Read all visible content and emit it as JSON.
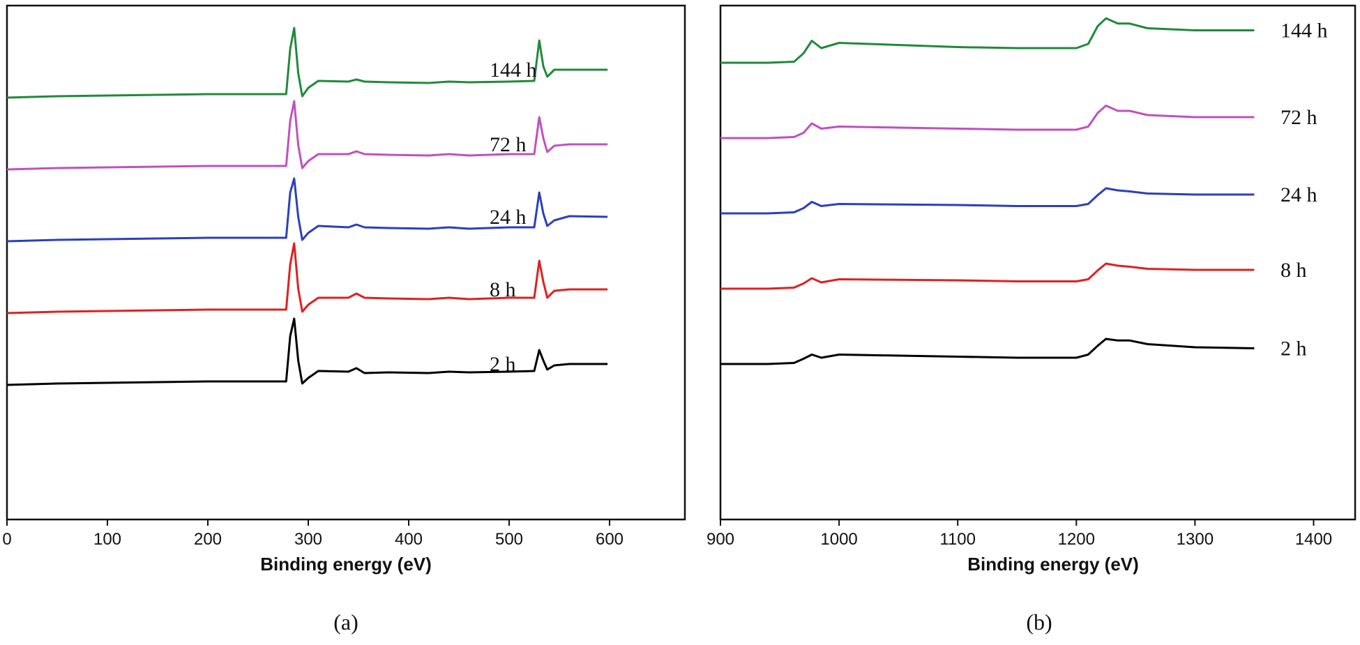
{
  "chart_data": [
    {
      "type": "line",
      "panel_label": "(a)",
      "xlabel": "Binding energy (eV)",
      "ylabel": "",
      "xlim": [
        0,
        675
      ],
      "xticks": [
        "0",
        "100",
        "200",
        "300",
        "400",
        "500",
        "600"
      ],
      "y_offset_step": 1,
      "series": [
        {
          "name": "2 h",
          "color": "#000000",
          "x": [
            0,
            50,
            100,
            150,
            200,
            250,
            278,
            282,
            286,
            290,
            294,
            300,
            310,
            340,
            348,
            356,
            380,
            420,
            440,
            460,
            500,
            525,
            530,
            534,
            538,
            545,
            560,
            598
          ],
          "values": [
            0.0,
            0.02,
            0.03,
            0.04,
            0.05,
            0.05,
            0.05,
            0.7,
            0.95,
            0.35,
            0.02,
            0.1,
            0.2,
            0.19,
            0.24,
            0.17,
            0.18,
            0.17,
            0.19,
            0.18,
            0.19,
            0.2,
            0.5,
            0.35,
            0.22,
            0.28,
            0.3,
            0.3
          ]
        },
        {
          "name": "8 h",
          "color": "#e02020",
          "x": [
            0,
            50,
            100,
            150,
            200,
            250,
            278,
            282,
            286,
            290,
            294,
            300,
            310,
            340,
            348,
            356,
            380,
            420,
            440,
            460,
            500,
            525,
            530,
            534,
            538,
            545,
            560,
            598
          ],
          "values": [
            0.0,
            0.02,
            0.03,
            0.04,
            0.05,
            0.05,
            0.05,
            0.7,
            1.0,
            0.35,
            0.02,
            0.12,
            0.22,
            0.22,
            0.28,
            0.22,
            0.21,
            0.2,
            0.22,
            0.2,
            0.22,
            0.22,
            0.75,
            0.45,
            0.22,
            0.32,
            0.34,
            0.34
          ]
        },
        {
          "name": "24 h",
          "color": "#2a3fbf",
          "x": [
            0,
            50,
            100,
            150,
            200,
            250,
            278,
            282,
            286,
            290,
            294,
            300,
            310,
            340,
            348,
            356,
            380,
            420,
            440,
            460,
            500,
            525,
            530,
            534,
            538,
            545,
            560,
            598
          ],
          "values": [
            0.0,
            0.02,
            0.03,
            0.04,
            0.05,
            0.05,
            0.05,
            0.7,
            0.9,
            0.35,
            0.02,
            0.12,
            0.22,
            0.2,
            0.24,
            0.2,
            0.19,
            0.18,
            0.2,
            0.18,
            0.2,
            0.2,
            0.7,
            0.4,
            0.22,
            0.3,
            0.36,
            0.35
          ]
        },
        {
          "name": "72 h",
          "color": "#c050c0",
          "x": [
            0,
            50,
            100,
            150,
            200,
            250,
            278,
            282,
            286,
            290,
            294,
            300,
            310,
            340,
            348,
            356,
            380,
            420,
            440,
            460,
            500,
            525,
            530,
            534,
            538,
            545,
            560,
            598
          ],
          "values": [
            0.0,
            0.02,
            0.03,
            0.04,
            0.05,
            0.05,
            0.05,
            0.7,
            0.98,
            0.35,
            0.02,
            0.12,
            0.22,
            0.22,
            0.26,
            0.22,
            0.21,
            0.2,
            0.22,
            0.2,
            0.22,
            0.22,
            0.75,
            0.45,
            0.25,
            0.34,
            0.36,
            0.36
          ]
        },
        {
          "name": "144 h",
          "color": "#1f8a3a",
          "x": [
            0,
            50,
            100,
            150,
            200,
            250,
            278,
            282,
            286,
            290,
            294,
            300,
            310,
            340,
            348,
            356,
            380,
            420,
            440,
            460,
            500,
            525,
            530,
            534,
            538,
            545,
            560,
            598
          ],
          "values": [
            0.0,
            0.02,
            0.03,
            0.04,
            0.05,
            0.05,
            0.05,
            0.7,
            1.0,
            0.35,
            0.02,
            0.14,
            0.24,
            0.23,
            0.26,
            0.23,
            0.22,
            0.21,
            0.23,
            0.22,
            0.23,
            0.24,
            0.82,
            0.45,
            0.3,
            0.4,
            0.4,
            0.4
          ]
        }
      ]
    },
    {
      "type": "line",
      "panel_label": "(b)",
      "xlabel": "Binding energy (eV)",
      "ylabel": "",
      "xlim": [
        900,
        1435
      ],
      "xticks": [
        "900",
        "1000",
        "1100",
        "1200",
        "1300",
        "1400"
      ],
      "y_offset_step": 1,
      "series": [
        {
          "name": "2 h",
          "color": "#000000",
          "x": [
            900,
            920,
            940,
            962,
            970,
            977,
            985,
            1000,
            1050,
            1100,
            1150,
            1200,
            1210,
            1218,
            1225,
            1235,
            1245,
            1260,
            1300,
            1350
          ],
          "values": [
            0.0,
            0.0,
            0.0,
            0.02,
            0.1,
            0.18,
            0.12,
            0.18,
            0.16,
            0.14,
            0.12,
            0.12,
            0.18,
            0.35,
            0.48,
            0.45,
            0.45,
            0.38,
            0.32,
            0.3
          ]
        },
        {
          "name": "8 h",
          "color": "#e02020",
          "x": [
            900,
            920,
            940,
            962,
            970,
            977,
            985,
            1000,
            1050,
            1100,
            1150,
            1200,
            1210,
            1218,
            1225,
            1235,
            1245,
            1260,
            1300,
            1350
          ],
          "values": [
            0.0,
            0.0,
            0.0,
            0.02,
            0.1,
            0.2,
            0.12,
            0.18,
            0.17,
            0.16,
            0.14,
            0.14,
            0.18,
            0.35,
            0.48,
            0.44,
            0.42,
            0.38,
            0.36,
            0.36
          ]
        },
        {
          "name": "24 h",
          "color": "#2a3fbf",
          "x": [
            900,
            920,
            940,
            962,
            970,
            977,
            985,
            1000,
            1050,
            1100,
            1150,
            1200,
            1210,
            1218,
            1225,
            1235,
            1245,
            1260,
            1300,
            1350
          ],
          "values": [
            0.0,
            0.0,
            0.0,
            0.02,
            0.1,
            0.22,
            0.14,
            0.18,
            0.17,
            0.16,
            0.14,
            0.14,
            0.18,
            0.35,
            0.48,
            0.44,
            0.42,
            0.38,
            0.36,
            0.36
          ]
        },
        {
          "name": "72 h",
          "color": "#c050c0",
          "x": [
            900,
            920,
            940,
            962,
            970,
            977,
            985,
            1000,
            1050,
            1100,
            1150,
            1200,
            1210,
            1218,
            1225,
            1235,
            1245,
            1260,
            1300,
            1350
          ],
          "values": [
            0.0,
            0.0,
            0.0,
            0.02,
            0.1,
            0.28,
            0.18,
            0.22,
            0.2,
            0.18,
            0.16,
            0.16,
            0.22,
            0.48,
            0.62,
            0.52,
            0.52,
            0.44,
            0.4,
            0.4
          ]
        },
        {
          "name": "144 h",
          "color": "#1f8a3a",
          "x": [
            900,
            920,
            940,
            962,
            970,
            977,
            985,
            1000,
            1050,
            1100,
            1150,
            1200,
            1210,
            1218,
            1225,
            1235,
            1245,
            1260,
            1300,
            1350
          ],
          "values": [
            0.0,
            0.0,
            0.0,
            0.02,
            0.18,
            0.42,
            0.28,
            0.38,
            0.34,
            0.3,
            0.28,
            0.28,
            0.36,
            0.7,
            0.85,
            0.75,
            0.75,
            0.66,
            0.62,
            0.62
          ]
        }
      ]
    }
  ]
}
